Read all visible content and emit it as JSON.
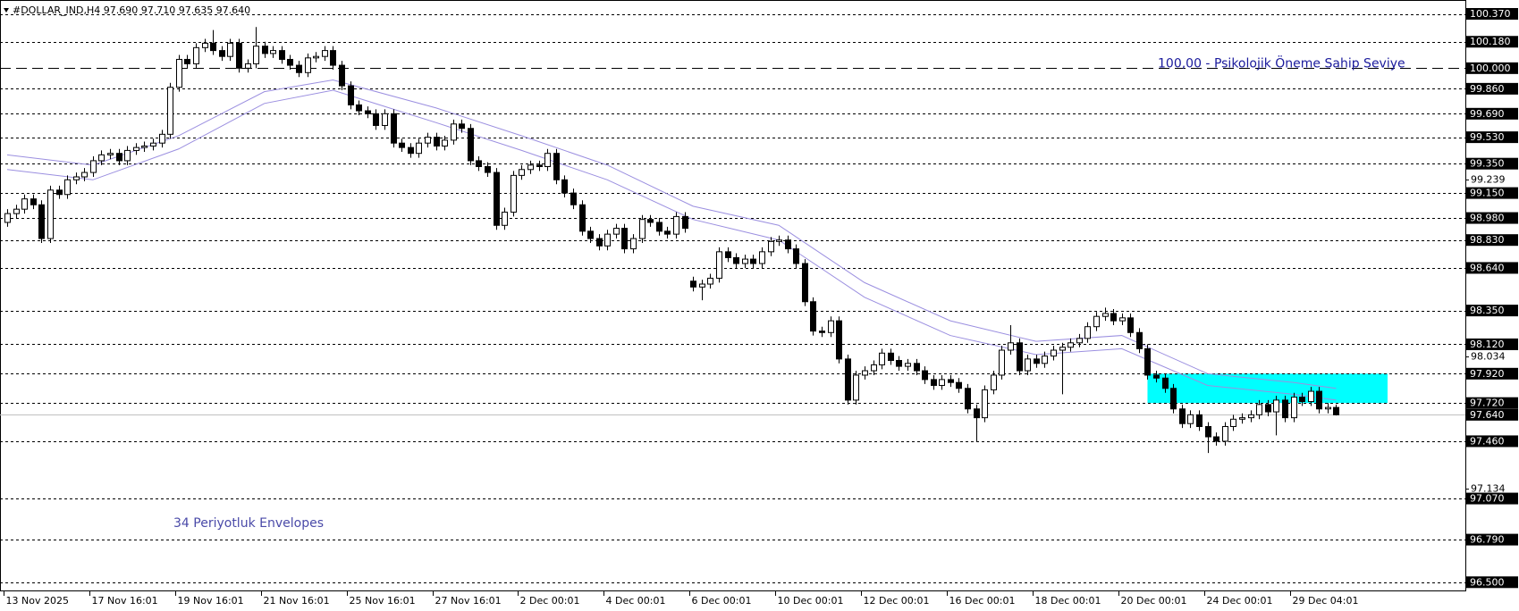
{
  "chart_data": {
    "type": "candlestick",
    "header": "#DOLLAR_IND,H4  97.690 97.710 97.635 97.640",
    "categories": [
      "13 Nov 2025",
      null,
      null,
      null,
      null,
      null,
      null,
      null,
      null,
      null,
      "17 Nov 16:01",
      null,
      null,
      null,
      null,
      null,
      null,
      null,
      null,
      null,
      "19 Nov 16:01",
      null,
      null,
      null,
      null,
      null,
      null,
      null,
      null,
      null,
      "21 Nov 16:01",
      null,
      null,
      null,
      null,
      null,
      null,
      null,
      null,
      null,
      "25 Nov 16:01",
      null,
      null,
      null,
      null,
      null,
      null,
      null,
      null,
      null,
      "27 Nov 16:01",
      null,
      null,
      null,
      null,
      null,
      null,
      null,
      null,
      null,
      "2 Dec 00:01",
      null,
      null,
      null,
      null,
      null,
      null,
      null,
      null,
      null,
      "4 Dec 00:01",
      null,
      null,
      null,
      null,
      null,
      null,
      null,
      null,
      null,
      "6 Dec 00:01",
      null,
      null,
      null,
      null,
      null,
      null,
      null,
      null,
      null,
      "10 Dec 00:01",
      null,
      null,
      null,
      null,
      null,
      null,
      null,
      null,
      null,
      "12 Dec 00:01",
      null,
      null,
      null,
      null,
      null,
      null,
      null,
      null,
      null,
      "16 Dec 00:01",
      null,
      null,
      null,
      null,
      null,
      null,
      null,
      null,
      null,
      "18 Dec 00:01",
      null,
      null,
      null,
      null,
      null,
      null,
      null,
      null,
      null,
      "20 Dec 00:01",
      null,
      null,
      null,
      null,
      null,
      null,
      null,
      null,
      null,
      "24 Dec 00:01",
      null,
      null,
      null,
      null,
      null,
      null,
      null,
      null,
      null,
      "29 Dec 04:01",
      null,
      null,
      null,
      null,
      null
    ],
    "open": [
      98.95,
      99.01,
      99.04,
      99.11,
      99.07,
      98.84,
      99.17,
      99.14,
      99.24,
      99.26,
      99.29,
      99.37,
      99.41,
      99.42,
      99.37,
      99.44,
      99.46,
      99.47,
      99.49,
      99.55,
      99.87,
      100.06,
      100.03,
      100.14,
      100.17,
      100.12,
      100.08,
      100.17,
      100.0,
      100.03,
      100.15,
      100.1,
      100.12,
      100.06,
      100.02,
      99.97,
      100.07,
      100.08,
      100.12,
      100.02,
      99.88,
      99.75,
      99.71,
      99.69,
      99.61,
      99.69,
      99.49,
      99.46,
      99.42,
      99.49,
      99.53,
      99.47,
      99.51,
      99.62,
      99.59,
      99.37,
      99.33,
      99.29,
      98.93,
      99.02,
      99.27,
      99.31,
      99.34,
      99.33,
      99.42,
      99.24,
      99.15,
      99.07,
      98.89,
      98.84,
      98.79,
      98.87,
      98.91,
      98.77,
      98.84,
      98.97,
      98.95,
      98.89,
      98.87,
      98.99,
      98.55,
      98.51,
      98.53,
      98.57,
      98.75,
      98.71,
      98.67,
      98.7,
      98.67,
      98.75,
      98.82,
      98.83,
      98.77,
      98.67,
      98.41,
      98.21,
      98.2,
      98.28,
      98.02,
      97.74,
      97.91,
      97.94,
      97.98,
      98.06,
      98.01,
      97.97,
      97.99,
      97.94,
      97.88,
      97.84,
      97.88,
      97.86,
      97.82,
      97.68,
      97.62,
      97.81,
      97.91,
      98.08,
      98.13,
      97.94,
      98.02,
      97.99,
      98.04,
      98.08,
      98.1,
      98.13,
      98.16,
      98.24,
      98.31,
      98.33,
      98.28,
      98.3,
      98.2,
      98.09,
      97.91,
      97.89,
      97.82,
      97.68,
      97.58,
      97.64,
      97.56,
      97.49,
      97.46,
      97.56,
      97.61,
      97.62,
      97.64,
      97.71,
      97.66,
      97.74,
      97.62,
      97.76,
      97.73,
      97.8,
      97.68,
      97.69
    ],
    "high": [
      99.04,
      99.07,
      99.14,
      99.14,
      99.1,
      99.2,
      99.2,
      99.27,
      99.29,
      99.32,
      99.4,
      99.44,
      99.45,
      99.45,
      99.47,
      99.49,
      99.5,
      99.52,
      99.58,
      99.9,
      100.09,
      100.09,
      100.17,
      100.2,
      100.26,
      100.15,
      100.2,
      100.2,
      100.06,
      100.28,
      100.18,
      100.15,
      100.15,
      100.09,
      100.05,
      100.1,
      100.11,
      100.15,
      100.15,
      100.05,
      99.91,
      99.78,
      99.74,
      99.72,
      99.72,
      99.72,
      99.52,
      99.49,
      99.52,
      99.56,
      99.56,
      99.54,
      99.65,
      99.65,
      99.62,
      99.4,
      99.36,
      99.32,
      99.05,
      99.3,
      99.34,
      99.37,
      99.37,
      99.45,
      99.45,
      99.27,
      99.18,
      99.1,
      98.92,
      98.87,
      98.9,
      98.94,
      98.94,
      98.87,
      99.0,
      99.0,
      98.98,
      98.92,
      99.02,
      99.02,
      98.58,
      98.56,
      98.6,
      98.78,
      98.78,
      98.74,
      98.73,
      98.73,
      98.78,
      98.85,
      98.86,
      98.86,
      98.8,
      98.7,
      98.44,
      98.24,
      98.31,
      98.31,
      98.05,
      97.94,
      97.97,
      98.01,
      98.09,
      98.09,
      98.04,
      98.02,
      98.02,
      97.97,
      97.91,
      97.91,
      97.91,
      97.89,
      97.85,
      97.71,
      97.84,
      97.94,
      98.11,
      98.25,
      98.16,
      98.05,
      98.05,
      98.07,
      98.11,
      98.13,
      98.16,
      98.19,
      98.27,
      98.34,
      98.37,
      98.36,
      98.33,
      98.33,
      98.23,
      98.12,
      97.94,
      97.92,
      97.85,
      97.71,
      97.67,
      97.67,
      97.59,
      97.52,
      97.59,
      97.64,
      97.65,
      97.67,
      97.74,
      97.74,
      97.77,
      97.77,
      97.79,
      97.79,
      97.83,
      97.83,
      97.72,
      97.71
    ],
    "low": [
      98.92,
      98.98,
      99.01,
      99.04,
      98.81,
      98.81,
      99.11,
      99.11,
      99.21,
      99.23,
      99.26,
      99.34,
      99.38,
      99.34,
      99.34,
      99.41,
      99.43,
      99.44,
      99.46,
      99.52,
      99.84,
      100.0,
      100.0,
      100.11,
      100.09,
      100.05,
      100.05,
      99.97,
      99.97,
      100.0,
      100.07,
      100.07,
      100.03,
      99.99,
      99.94,
      99.94,
      100.04,
      100.05,
      99.99,
      99.85,
      99.72,
      99.68,
      99.66,
      99.58,
      99.58,
      99.46,
      99.43,
      99.39,
      99.39,
      99.46,
      99.44,
      99.44,
      99.48,
      99.56,
      99.34,
      99.3,
      99.26,
      98.9,
      98.9,
      98.99,
      99.24,
      99.28,
      99.3,
      99.3,
      99.21,
      99.12,
      99.04,
      98.86,
      98.81,
      98.76,
      98.76,
      98.84,
      98.74,
      98.74,
      98.81,
      98.92,
      98.86,
      98.84,
      98.84,
      98.88,
      98.48,
      98.42,
      98.5,
      98.54,
      98.68,
      98.64,
      98.64,
      98.64,
      98.64,
      98.72,
      98.79,
      98.74,
      98.64,
      98.38,
      98.18,
      98.17,
      98.17,
      97.99,
      97.71,
      97.71,
      97.88,
      97.91,
      97.95,
      97.98,
      97.94,
      97.94,
      97.91,
      97.85,
      97.81,
      97.81,
      97.83,
      97.79,
      97.65,
      97.46,
      97.59,
      97.78,
      97.88,
      98.05,
      97.91,
      97.91,
      97.96,
      97.96,
      98.01,
      97.78,
      98.07,
      98.1,
      98.13,
      98.21,
      98.28,
      98.25,
      98.25,
      98.17,
      98.06,
      97.88,
      97.86,
      97.79,
      97.65,
      97.55,
      97.55,
      97.53,
      97.38,
      97.43,
      97.43,
      97.53,
      97.58,
      97.59,
      97.61,
      97.63,
      97.5,
      97.59,
      97.59,
      97.7,
      97.7,
      97.65,
      97.65,
      97.635
    ],
    "close": [
      99.01,
      99.04,
      99.11,
      99.07,
      98.84,
      99.17,
      99.14,
      99.24,
      99.26,
      99.29,
      99.37,
      99.41,
      99.42,
      99.37,
      99.44,
      99.46,
      99.47,
      99.49,
      99.55,
      99.87,
      100.06,
      100.03,
      100.14,
      100.17,
      100.12,
      100.08,
      100.17,
      100.0,
      100.03,
      100.15,
      100.1,
      100.12,
      100.06,
      100.02,
      99.97,
      100.07,
      100.08,
      100.12,
      100.02,
      99.88,
      99.75,
      99.71,
      99.69,
      99.61,
      99.69,
      99.49,
      99.46,
      99.42,
      99.49,
      99.53,
      99.47,
      99.51,
      99.62,
      99.59,
      99.37,
      99.33,
      99.29,
      98.93,
      99.02,
      99.27,
      99.31,
      99.34,
      99.33,
      99.42,
      99.24,
      99.15,
      99.07,
      98.89,
      98.84,
      98.79,
      98.87,
      98.91,
      98.77,
      98.84,
      98.97,
      98.95,
      98.89,
      98.87,
      98.99,
      98.91,
      98.51,
      98.53,
      98.57,
      98.75,
      98.71,
      98.67,
      98.7,
      98.67,
      98.75,
      98.82,
      98.83,
      98.77,
      98.67,
      98.41,
      98.21,
      98.2,
      98.28,
      98.02,
      97.74,
      97.91,
      97.94,
      97.98,
      98.06,
      98.01,
      97.97,
      97.99,
      97.94,
      97.88,
      97.84,
      97.88,
      97.86,
      97.82,
      97.68,
      97.62,
      97.81,
      97.91,
      98.08,
      98.13,
      97.94,
      98.02,
      97.99,
      98.04,
      98.08,
      98.1,
      98.13,
      98.16,
      98.24,
      98.31,
      98.33,
      98.28,
      98.3,
      98.2,
      98.09,
      97.91,
      97.89,
      97.82,
      97.68,
      97.58,
      97.64,
      97.56,
      97.49,
      97.46,
      97.56,
      97.61,
      97.62,
      97.64,
      97.71,
      97.66,
      97.74,
      97.62,
      97.76,
      97.73,
      97.8,
      97.68,
      97.69,
      97.64
    ],
    "envelope": {
      "label": "34 Periyotluk Envelopes",
      "color": "#9b8fe0",
      "x": [
        0,
        10,
        20,
        30,
        38,
        50,
        60,
        70,
        80,
        90,
        100,
        110,
        120,
        130,
        140,
        150,
        155
      ],
      "upper": [
        99.41,
        99.34,
        99.54,
        99.84,
        99.92,
        99.73,
        99.54,
        99.34,
        99.06,
        98.93,
        98.54,
        98.28,
        98.14,
        98.18,
        97.92,
        97.86,
        97.82
      ],
      "lower": [
        99.31,
        99.24,
        99.45,
        99.76,
        99.85,
        99.63,
        99.44,
        99.24,
        98.97,
        98.83,
        98.44,
        98.18,
        98.05,
        98.09,
        97.84,
        97.78,
        97.74
      ]
    },
    "key_level": {
      "value": 100,
      "label": "100.000",
      "text": "100,00 -  Psikolojik Öneme Sahip Seviye"
    },
    "levels": [
      {
        "value": 100.37,
        "label": "100.370"
      },
      {
        "value": 100.18,
        "label": "100.180"
      },
      {
        "value": 99.86,
        "label": "99.860"
      },
      {
        "value": 99.69,
        "label": "99.690"
      },
      {
        "value": 99.53,
        "label": "99.530"
      },
      {
        "value": 99.35,
        "label": "99.350"
      },
      {
        "value": 99.15,
        "label": "99.150"
      },
      {
        "value": 98.98,
        "label": "98.980"
      },
      {
        "value": 98.83,
        "label": "98.830"
      },
      {
        "value": 98.64,
        "label": "98.640"
      },
      {
        "value": 98.35,
        "label": "98.350"
      },
      {
        "value": 98.12,
        "label": "98.120"
      },
      {
        "value": 97.92,
        "label": "97.920"
      },
      {
        "value": 97.72,
        "label": "97.720"
      },
      {
        "value": 97.46,
        "label": "97.460"
      },
      {
        "value": 97.07,
        "label": "97.070"
      },
      {
        "value": 96.79,
        "label": "96.790"
      },
      {
        "value": 96.5,
        "label": "96.500"
      }
    ],
    "current_price": {
      "value": 97.64,
      "label": "97.640"
    },
    "zone": {
      "x": [
        133,
        161
      ],
      "y": [
        97.72,
        97.92
      ],
      "color": "#00ffff"
    },
    "ylim": [
      96.45,
      100.44
    ],
    "yticks": [
      99.239,
      98.034,
      97.134
    ]
  }
}
